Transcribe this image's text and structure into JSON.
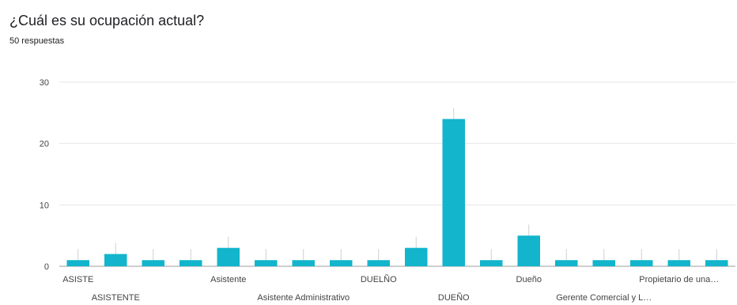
{
  "question": {
    "title": "¿Cuál es su ocupación actual?",
    "responses": "50 respuestas"
  },
  "chart_data": {
    "type": "bar",
    "title": "¿Cuál es su ocupación actual?",
    "subtitle": "50 respuestas",
    "xlabel": "",
    "ylabel": "",
    "ylim": [
      0,
      30
    ],
    "yticks": [
      0,
      10,
      20,
      30
    ],
    "grid": true,
    "legend": "none",
    "bar_color": "#12b5cb",
    "categories": [
      "ASISTE",
      "ASISTENTE",
      "",
      "",
      "Asistente",
      "",
      "Asistente Administrativo",
      "",
      "DUELÑO",
      "",
      "DUEÑO",
      "",
      "Dueño",
      "",
      "Gerente Comercial y L…",
      "",
      "Propietario de una…",
      ""
    ],
    "values": [
      1,
      2,
      1,
      1,
      3,
      1,
      1,
      1,
      1,
      3,
      24,
      1,
      5,
      1,
      1,
      1,
      1,
      1
    ]
  }
}
